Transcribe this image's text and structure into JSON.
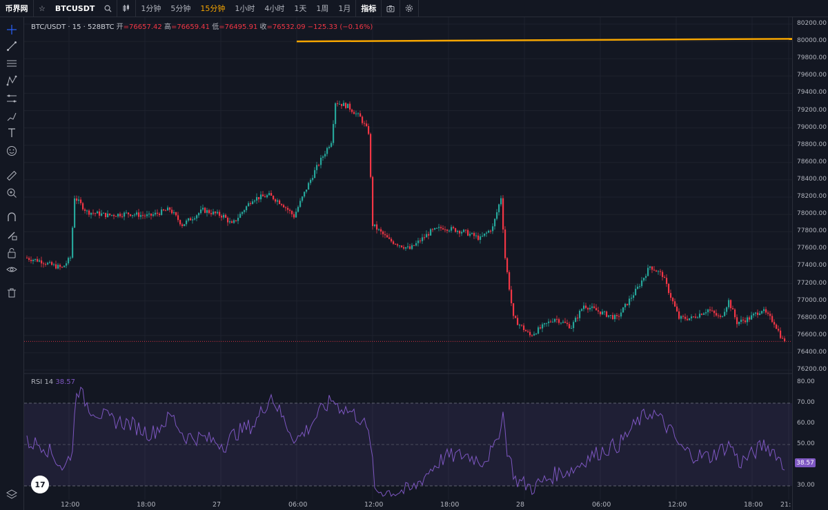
{
  "topbar": {
    "logo": "币界网",
    "symbol": "BTCUSDT",
    "intervals": [
      "1分钟",
      "5分钟",
      "15分钟",
      "1小时",
      "4小时",
      "1天",
      "1周",
      "1月"
    ],
    "active_interval": "15分钟",
    "indicators_label": "指标"
  },
  "legend": {
    "symbol": "BTC/USDT · 15 · 528BTC",
    "open_label": "开",
    "open": "=76657.42",
    "high_label": "高",
    "high": "=76659.41",
    "low_label": "低",
    "low": "=76495.91",
    "close_label": "收",
    "close": "=76532.09",
    "change": "−125.33 (−0.16%)"
  },
  "rsi": {
    "name": "RSI",
    "length": "14",
    "value": "38.57",
    "badge": "38.57"
  },
  "price_axis": [
    "80200.00",
    "80000.00",
    "79800.00",
    "79600.00",
    "79400.00",
    "79200.00",
    "79000.00",
    "78800.00",
    "78600.00",
    "78400.00",
    "78200.00",
    "78000.00",
    "77800.00",
    "77600.00",
    "77400.00",
    "77200.00",
    "77000.00",
    "76800.00",
    "76600.00",
    "76400.00",
    "76200.00"
  ],
  "rsi_axis": [
    "80.00",
    "70.00",
    "60.00",
    "50.00",
    "40.00",
    "30.00"
  ],
  "time_axis": [
    "12:00",
    "18:00",
    "27",
    "06:00",
    "12:00",
    "18:00",
    "28",
    "06:00",
    "12:00",
    "18:00",
    "21:"
  ],
  "colors": {
    "up": "#26a69a",
    "down": "#f23645",
    "rsi": "#7e57c2",
    "hline": "#f7a600",
    "bg": "#131722"
  },
  "chart_data": {
    "type": "candlestick",
    "hline": 80000,
    "ylim": [
      76200,
      80200
    ],
    "anchors": [
      [
        0,
        77500
      ],
      [
        8,
        77460
      ],
      [
        12,
        77420
      ],
      [
        18,
        77380
      ],
      [
        22,
        77500
      ],
      [
        24,
        78200
      ],
      [
        30,
        78030
      ],
      [
        40,
        77990
      ],
      [
        50,
        78010
      ],
      [
        60,
        77980
      ],
      [
        70,
        78060
      ],
      [
        76,
        77880
      ],
      [
        86,
        78050
      ],
      [
        96,
        77980
      ],
      [
        100,
        77880
      ],
      [
        110,
        78180
      ],
      [
        118,
        78220
      ],
      [
        124,
        78130
      ],
      [
        130,
        77980
      ],
      [
        136,
        78300
      ],
      [
        140,
        78500
      ],
      [
        148,
        78850
      ],
      [
        150,
        79300
      ],
      [
        156,
        79250
      ],
      [
        162,
        79120
      ],
      [
        166,
        78950
      ],
      [
        168,
        77880
      ],
      [
        176,
        77700
      ],
      [
        186,
        77600
      ],
      [
        196,
        77800
      ],
      [
        202,
        77850
      ],
      [
        212,
        77800
      ],
      [
        220,
        77720
      ],
      [
        226,
        77850
      ],
      [
        230,
        78200
      ],
      [
        232,
        77500
      ],
      [
        236,
        76800
      ],
      [
        244,
        76600
      ],
      [
        256,
        76800
      ],
      [
        264,
        76700
      ],
      [
        270,
        76950
      ],
      [
        280,
        76850
      ],
      [
        286,
        76800
      ],
      [
        296,
        77150
      ],
      [
        302,
        77400
      ],
      [
        308,
        77300
      ],
      [
        312,
        77050
      ],
      [
        316,
        76800
      ],
      [
        322,
        76800
      ],
      [
        330,
        76900
      ],
      [
        336,
        76800
      ],
      [
        340,
        77000
      ],
      [
        344,
        76750
      ],
      [
        350,
        76800
      ],
      [
        356,
        76900
      ],
      [
        362,
        76750
      ],
      [
        366,
        76550
      ]
    ],
    "rsi_anchors": [
      [
        0,
        51
      ],
      [
        8,
        50
      ],
      [
        14,
        43
      ],
      [
        18,
        38
      ],
      [
        22,
        48
      ],
      [
        24,
        78
      ],
      [
        30,
        68
      ],
      [
        40,
        62
      ],
      [
        50,
        60
      ],
      [
        60,
        55
      ],
      [
        70,
        64
      ],
      [
        76,
        54
      ],
      [
        86,
        53
      ],
      [
        96,
        50
      ],
      [
        100,
        55
      ],
      [
        110,
        60
      ],
      [
        118,
        74
      ],
      [
        124,
        62
      ],
      [
        130,
        52
      ],
      [
        136,
        58
      ],
      [
        140,
        64
      ],
      [
        148,
        72
      ],
      [
        150,
        69
      ],
      [
        156,
        66
      ],
      [
        162,
        62
      ],
      [
        166,
        52
      ],
      [
        168,
        28
      ],
      [
        176,
        27
      ],
      [
        186,
        28
      ],
      [
        196,
        39
      ],
      [
        202,
        44
      ],
      [
        212,
        45
      ],
      [
        220,
        42
      ],
      [
        226,
        48
      ],
      [
        230,
        65
      ],
      [
        232,
        48
      ],
      [
        236,
        33
      ],
      [
        244,
        29
      ],
      [
        256,
        36
      ],
      [
        264,
        38
      ],
      [
        270,
        43
      ],
      [
        280,
        48
      ],
      [
        286,
        50
      ],
      [
        296,
        62
      ],
      [
        302,
        66
      ],
      [
        308,
        60
      ],
      [
        312,
        55
      ],
      [
        316,
        48
      ],
      [
        322,
        45
      ],
      [
        330,
        44
      ],
      [
        336,
        48
      ],
      [
        340,
        50
      ],
      [
        344,
        41
      ],
      [
        350,
        45
      ],
      [
        356,
        50
      ],
      [
        362,
        46
      ],
      [
        366,
        38
      ]
    ]
  }
}
